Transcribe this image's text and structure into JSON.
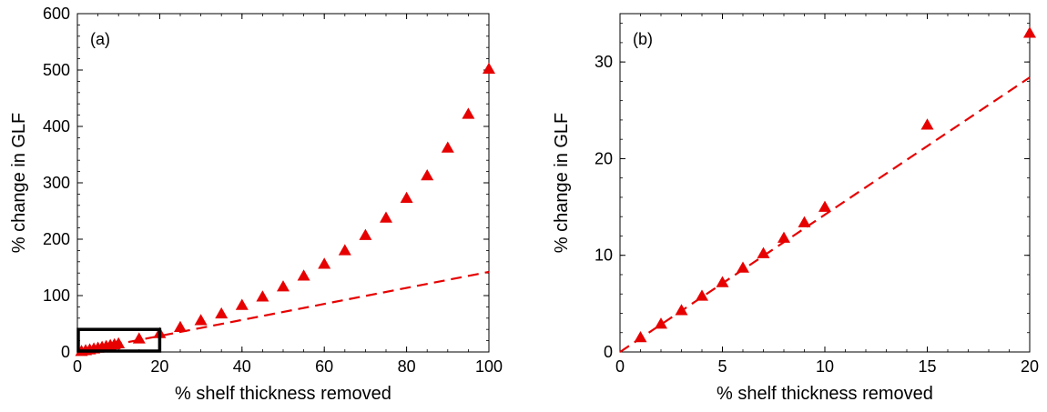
{
  "chart_data": [
    {
      "type": "scatter",
      "panel_label": "(a)",
      "xlabel": "% shelf thickness removed",
      "ylabel": "% change in GLF",
      "xlim": [
        0,
        100
      ],
      "ylim": [
        0,
        600
      ],
      "xticks": [
        0,
        20,
        40,
        60,
        80,
        100
      ],
      "yticks": [
        0,
        100,
        200,
        300,
        400,
        500,
        600
      ],
      "grid": false,
      "marker_color": "#e60000",
      "line_color": "#e60000",
      "series": [
        {
          "kind": "markers",
          "marker": "triangle",
          "x": [
            1,
            2,
            3,
            4,
            5,
            6,
            7,
            8,
            9,
            10,
            15,
            20,
            25,
            30,
            35,
            40,
            45,
            50,
            55,
            60,
            65,
            70,
            75,
            80,
            85,
            90,
            95,
            100
          ],
          "y": [
            1.5,
            2.9,
            4.3,
            5.8,
            7.2,
            8.7,
            10.2,
            11.8,
            13.4,
            15,
            23.5,
            33,
            44,
            56,
            68,
            83,
            98,
            116,
            135,
            156,
            180,
            207,
            238,
            273,
            313,
            362,
            422,
            502
          ]
        },
        {
          "kind": "dashed-line",
          "x": [
            0,
            100
          ],
          "y": [
            0,
            142
          ]
        }
      ],
      "inset_box": {
        "x": [
          0,
          20
        ],
        "y": [
          0,
          40
        ]
      }
    },
    {
      "type": "scatter",
      "panel_label": "(b)",
      "xlabel": "% shelf thickness removed",
      "ylabel": "% change in GLF",
      "xlim": [
        0,
        20
      ],
      "ylim": [
        0,
        35
      ],
      "xticks": [
        0,
        5,
        10,
        15,
        20
      ],
      "yticks": [
        0,
        10,
        20,
        30
      ],
      "grid": false,
      "marker_color": "#e60000",
      "line_color": "#e60000",
      "series": [
        {
          "kind": "markers",
          "marker": "triangle",
          "x": [
            1,
            2,
            3,
            4,
            5,
            6,
            7,
            8,
            9,
            10,
            15,
            20
          ],
          "y": [
            1.5,
            2.9,
            4.3,
            5.8,
            7.2,
            8.7,
            10.2,
            11.8,
            13.4,
            15,
            23.5,
            33
          ]
        },
        {
          "kind": "dashed-line",
          "x": [
            0,
            20
          ],
          "y": [
            0,
            28.4
          ]
        }
      ]
    }
  ]
}
